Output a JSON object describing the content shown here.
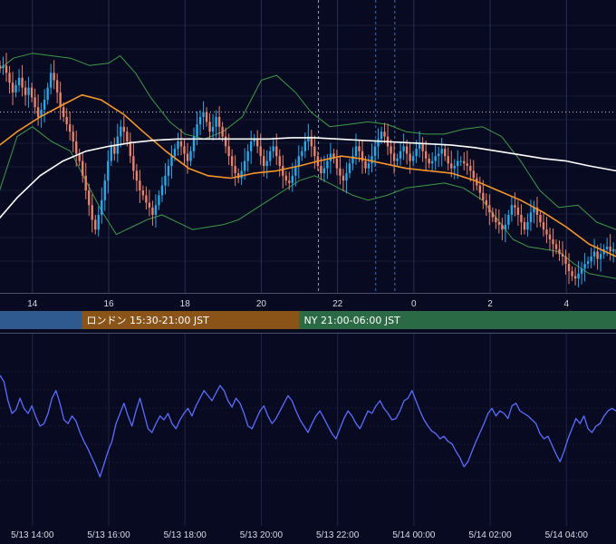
{
  "chart_data": [
    {
      "type": "candlestick",
      "name_hint": "price-panel",
      "x_unit": "hour",
      "x_tick_labels": [
        "14",
        "16",
        "18",
        "20",
        "22",
        "0",
        "2",
        "4"
      ],
      "x_tick_hours": [
        14,
        16,
        18,
        20,
        22,
        24,
        26,
        28
      ],
      "x_range_hours": [
        13.15,
        29.3
      ],
      "y_range": [
        0,
        100
      ],
      "grid": true,
      "current_price_level": 72,
      "session_lines_hours": [
        21.5,
        23.0,
        23.5
      ],
      "overlays": [
        {
          "name": "",
          "style": "ma",
          "color": "#f5962c",
          "points": [
            [
              13.1,
              58
            ],
            [
              13.6,
              64
            ],
            [
              14.2,
              70
            ],
            [
              14.8,
              75
            ],
            [
              15.3,
              79
            ],
            [
              15.8,
              77
            ],
            [
              16.4,
              71
            ],
            [
              16.9,
              64
            ],
            [
              17.5,
              56
            ],
            [
              18.1,
              49
            ],
            [
              18.6,
              46
            ],
            [
              19.2,
              45
            ],
            [
              19.8,
              47
            ],
            [
              20.4,
              48
            ],
            [
              21.0,
              50
            ],
            [
              21.5,
              52
            ],
            [
              22.1,
              54
            ],
            [
              22.6,
              53
            ],
            [
              23.2,
              51
            ],
            [
              23.8,
              49
            ],
            [
              24.4,
              48
            ],
            [
              25.0,
              47
            ],
            [
              25.6,
              44
            ],
            [
              26.2,
              40
            ],
            [
              26.8,
              36
            ],
            [
              27.4,
              31
            ],
            [
              28.0,
              25
            ],
            [
              28.6,
              18
            ],
            [
              29.3,
              13
            ]
          ]
        },
        {
          "name": "",
          "style": "ma",
          "color": "#ffffff",
          "points": [
            [
              13.1,
              28
            ],
            [
              13.6,
              37
            ],
            [
              14.2,
              46
            ],
            [
              14.8,
              52
            ],
            [
              15.4,
              56
            ],
            [
              16.0,
              58
            ],
            [
              16.6,
              59.5
            ],
            [
              17.2,
              60.5
            ],
            [
              17.8,
              61
            ],
            [
              18.4,
              61
            ],
            [
              19.0,
              61
            ],
            [
              19.6,
              61
            ],
            [
              20.2,
              61
            ],
            [
              20.8,
              61.5
            ],
            [
              21.4,
              61.5
            ],
            [
              22.0,
              61
            ],
            [
              22.6,
              60.5
            ],
            [
              23.2,
              60
            ],
            [
              23.8,
              59.5
            ],
            [
              24.4,
              59
            ],
            [
              25.0,
              58.5
            ],
            [
              25.6,
              57.5
            ],
            [
              26.2,
              56
            ],
            [
              26.8,
              54.5
            ],
            [
              27.4,
              53
            ],
            [
              28.0,
              52
            ],
            [
              28.6,
              50
            ],
            [
              29.3,
              48
            ]
          ]
        },
        {
          "name": "",
          "style": "band",
          "color": "#3f9a4a",
          "points": [
            [
              13.1,
              89
            ],
            [
              13.5,
              94
            ],
            [
              14.0,
              96
            ],
            [
              14.5,
              95
            ],
            [
              15.0,
              94
            ],
            [
              15.5,
              91
            ],
            [
              16.0,
              92
            ],
            [
              16.3,
              95
            ],
            [
              16.7,
              88
            ],
            [
              17.1,
              78
            ],
            [
              17.6,
              68
            ],
            [
              18.0,
              63
            ],
            [
              18.5,
              61
            ],
            [
              19.0,
              64
            ],
            [
              19.5,
              70
            ],
            [
              20.0,
              85
            ],
            [
              20.4,
              87
            ],
            [
              20.9,
              80
            ],
            [
              21.3,
              72
            ],
            [
              21.8,
              66
            ],
            [
              22.3,
              67
            ],
            [
              22.8,
              68
            ],
            [
              23.3,
              67
            ],
            [
              23.8,
              64
            ],
            [
              24.3,
              63
            ],
            [
              24.8,
              63
            ],
            [
              25.3,
              65
            ],
            [
              25.8,
              66
            ],
            [
              26.3,
              62
            ],
            [
              26.8,
              52
            ],
            [
              27.3,
              40
            ],
            [
              27.8,
              33
            ],
            [
              28.3,
              34
            ],
            [
              28.8,
              27
            ],
            [
              29.3,
              24
            ]
          ]
        },
        {
          "name": "",
          "style": "band",
          "color": "#3f9a4a",
          "points": [
            [
              13.1,
              38
            ],
            [
              13.6,
              62
            ],
            [
              14.0,
              66
            ],
            [
              14.5,
              60
            ],
            [
              15.0,
              56
            ],
            [
              15.4,
              44
            ],
            [
              15.8,
              32
            ],
            [
              16.2,
              22
            ],
            [
              16.6,
              25
            ],
            [
              17.0,
              28
            ],
            [
              17.4,
              30
            ],
            [
              17.8,
              27
            ],
            [
              18.2,
              24
            ],
            [
              18.6,
              25
            ],
            [
              19.0,
              26
            ],
            [
              19.4,
              28
            ],
            [
              19.8,
              32
            ],
            [
              20.2,
              36
            ],
            [
              20.6,
              40
            ],
            [
              21.0,
              44
            ],
            [
              21.4,
              46
            ],
            [
              21.9,
              42
            ],
            [
              22.4,
              38
            ],
            [
              22.8,
              36
            ],
            [
              23.3,
              38
            ],
            [
              23.8,
              41
            ],
            [
              24.3,
              42
            ],
            [
              24.8,
              43
            ],
            [
              25.3,
              41
            ],
            [
              25.8,
              36
            ],
            [
              26.2,
              28
            ],
            [
              26.6,
              20
            ],
            [
              27.0,
              17
            ],
            [
              27.4,
              16
            ],
            [
              27.8,
              15
            ],
            [
              28.2,
              10
            ],
            [
              28.6,
              6
            ],
            [
              29.3,
              4
            ]
          ]
        }
      ],
      "candles": {
        "t_start": 13.15,
        "t_step": 0.08333,
        "close": [
          90,
          91,
          88,
          84,
          80,
          83,
          86,
          82,
          79,
          82,
          78,
          74,
          70,
          73,
          77,
          82,
          88,
          85,
          80,
          74,
          70,
          67,
          64,
          60,
          55,
          52,
          46,
          40,
          34,
          28,
          24,
          30,
          36,
          44,
          52,
          58,
          55,
          62,
          66,
          64,
          60,
          54,
          48,
          44,
          40,
          38,
          35,
          33,
          30,
          34,
          38,
          42,
          46,
          50,
          54,
          57,
          60,
          58,
          55,
          52,
          56,
          62,
          67,
          70,
          72,
          68,
          64,
          66,
          70,
          66,
          62,
          58,
          54,
          50,
          47,
          45,
          48,
          52,
          56,
          60,
          61,
          58,
          54,
          50,
          52,
          56,
          58,
          54,
          50,
          46,
          44,
          43,
          46,
          50,
          54,
          56,
          60,
          62,
          58,
          54,
          50,
          47,
          49,
          52,
          55,
          53,
          49,
          46,
          44,
          47,
          51,
          54,
          58,
          56,
          52,
          49,
          51,
          54,
          58,
          61,
          64,
          62,
          58,
          55,
          52,
          53,
          56,
          58,
          55,
          52,
          54,
          57,
          59,
          56,
          53,
          51,
          52,
          54,
          55,
          57,
          54,
          51,
          49,
          50,
          52,
          52,
          51,
          50,
          48,
          45,
          42,
          39,
          36,
          34,
          31,
          29,
          27,
          26,
          24,
          26,
          30,
          34,
          33,
          30,
          27,
          24,
          27,
          31,
          33,
          30,
          27,
          24,
          22,
          20,
          18,
          16,
          14,
          13,
          10,
          7,
          5,
          4,
          6,
          8,
          10,
          11,
          13,
          15,
          12,
          14,
          16,
          17,
          15,
          16,
          14,
          15
        ]
      }
    },
    {
      "type": "line",
      "name_hint": "oscillator-panel",
      "color": "#5a6dff",
      "x_tick_labels": [
        "5/13 14:00",
        "5/13 16:00",
        "5/13 18:00",
        "5/13 20:00",
        "5/13 22:00",
        "5/14 00:00",
        "5/14 02:00",
        "5/14 04:00"
      ],
      "y_range": [
        0,
        100
      ],
      "grid": true,
      "values": [
        90,
        85,
        70,
        60,
        63,
        72,
        64,
        60,
        66,
        57,
        50,
        52,
        60,
        72,
        78,
        68,
        55,
        52,
        58,
        54,
        45,
        38,
        32,
        25,
        18,
        10,
        20,
        30,
        38,
        52,
        60,
        68,
        58,
        50,
        62,
        72,
        60,
        48,
        45,
        52,
        58,
        55,
        60,
        52,
        48,
        55,
        60,
        64,
        58,
        66,
        72,
        78,
        74,
        70,
        76,
        82,
        78,
        70,
        65,
        72,
        68,
        60,
        50,
        48,
        55,
        62,
        66,
        58,
        52,
        56,
        62,
        68,
        74,
        70,
        62,
        55,
        50,
        45,
        52,
        58,
        62,
        56,
        50,
        44,
        40,
        48,
        56,
        62,
        58,
        52,
        48,
        55,
        62,
        60,
        66,
        70,
        64,
        60,
        55,
        56,
        62,
        70,
        72,
        78,
        70,
        62,
        55,
        50,
        46,
        44,
        40,
        42,
        38,
        36,
        30,
        25,
        18,
        22,
        30,
        38,
        45,
        52,
        60,
        64,
        58,
        62,
        60,
        56,
        66,
        68,
        62,
        60,
        58,
        55,
        52,
        44,
        40,
        42,
        35,
        28,
        22,
        30,
        40,
        48,
        56,
        52,
        58,
        48,
        45,
        50,
        52,
        58,
        62,
        64,
        62
      ]
    }
  ],
  "sessions": [
    {
      "label": "",
      "color": "#2f5a8f",
      "start_hour": 13.15,
      "end_hour": 15.3
    },
    {
      "label": "ロンドン 15:30-21:00 JST",
      "color": "#8a5418",
      "start_hour": 15.3,
      "end_hour": 21.0
    },
    {
      "label": "NY 21:00-06:00 JST",
      "color": "#2a6a45",
      "start_hour": 21.0,
      "end_hour": 29.3
    }
  ],
  "colors": {
    "background": "#070a20",
    "candle_up": "#29a8e8",
    "candle_down": "#e8826a"
  }
}
